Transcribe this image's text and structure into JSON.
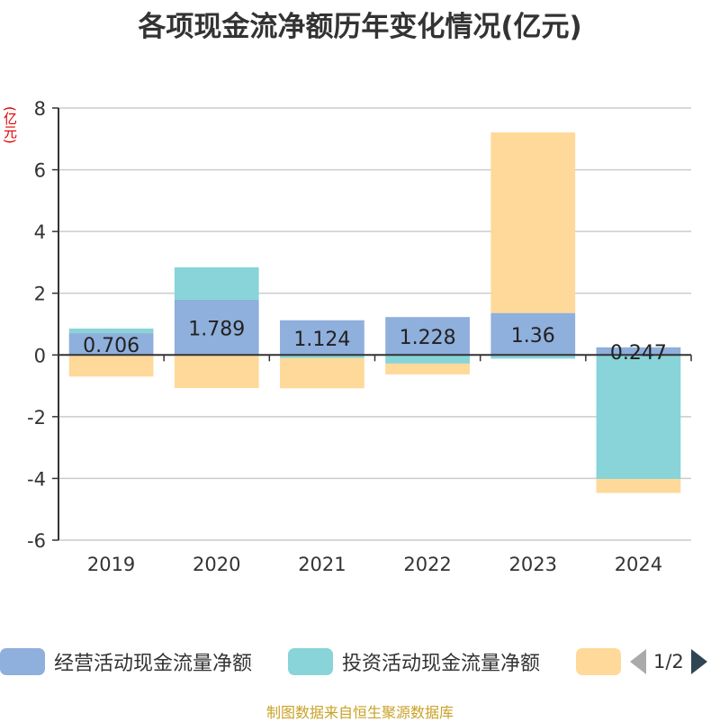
{
  "chart_data": {
    "type": "bar",
    "stacked": true,
    "title": "各项现金流净额历年变化情况(亿元)",
    "ylabel": "(亿元)",
    "ylim": [
      -6,
      8
    ],
    "yticks": [
      8,
      6,
      4,
      2,
      0,
      -2,
      -4,
      -6
    ],
    "categories": [
      "2019",
      "2020",
      "2021",
      "2022",
      "2023",
      "2024"
    ],
    "series": [
      {
        "name": "经营活动现金流量净额",
        "color": "#8fafdc",
        "values": [
          0.706,
          1.789,
          1.124,
          1.228,
          1.36,
          0.247
        ],
        "labels": [
          "0.706",
          "1.789",
          "1.124",
          "1.228",
          "1.36",
          "0.247"
        ]
      },
      {
        "name": "投资活动现金流量净额",
        "color": "#88d4d8",
        "values": [
          0.15,
          1.05,
          -0.1,
          -0.28,
          -0.12,
          -4.02
        ]
      },
      {
        "name": "",
        "color": "#ffd999",
        "values": [
          -0.7,
          -1.07,
          -0.98,
          -0.35,
          5.85,
          -0.45
        ]
      }
    ],
    "legend_position": "bottom",
    "grid": true
  },
  "legend": {
    "page_indicator": "1/2"
  },
  "source": "制图数据来自恒生聚源数据库"
}
